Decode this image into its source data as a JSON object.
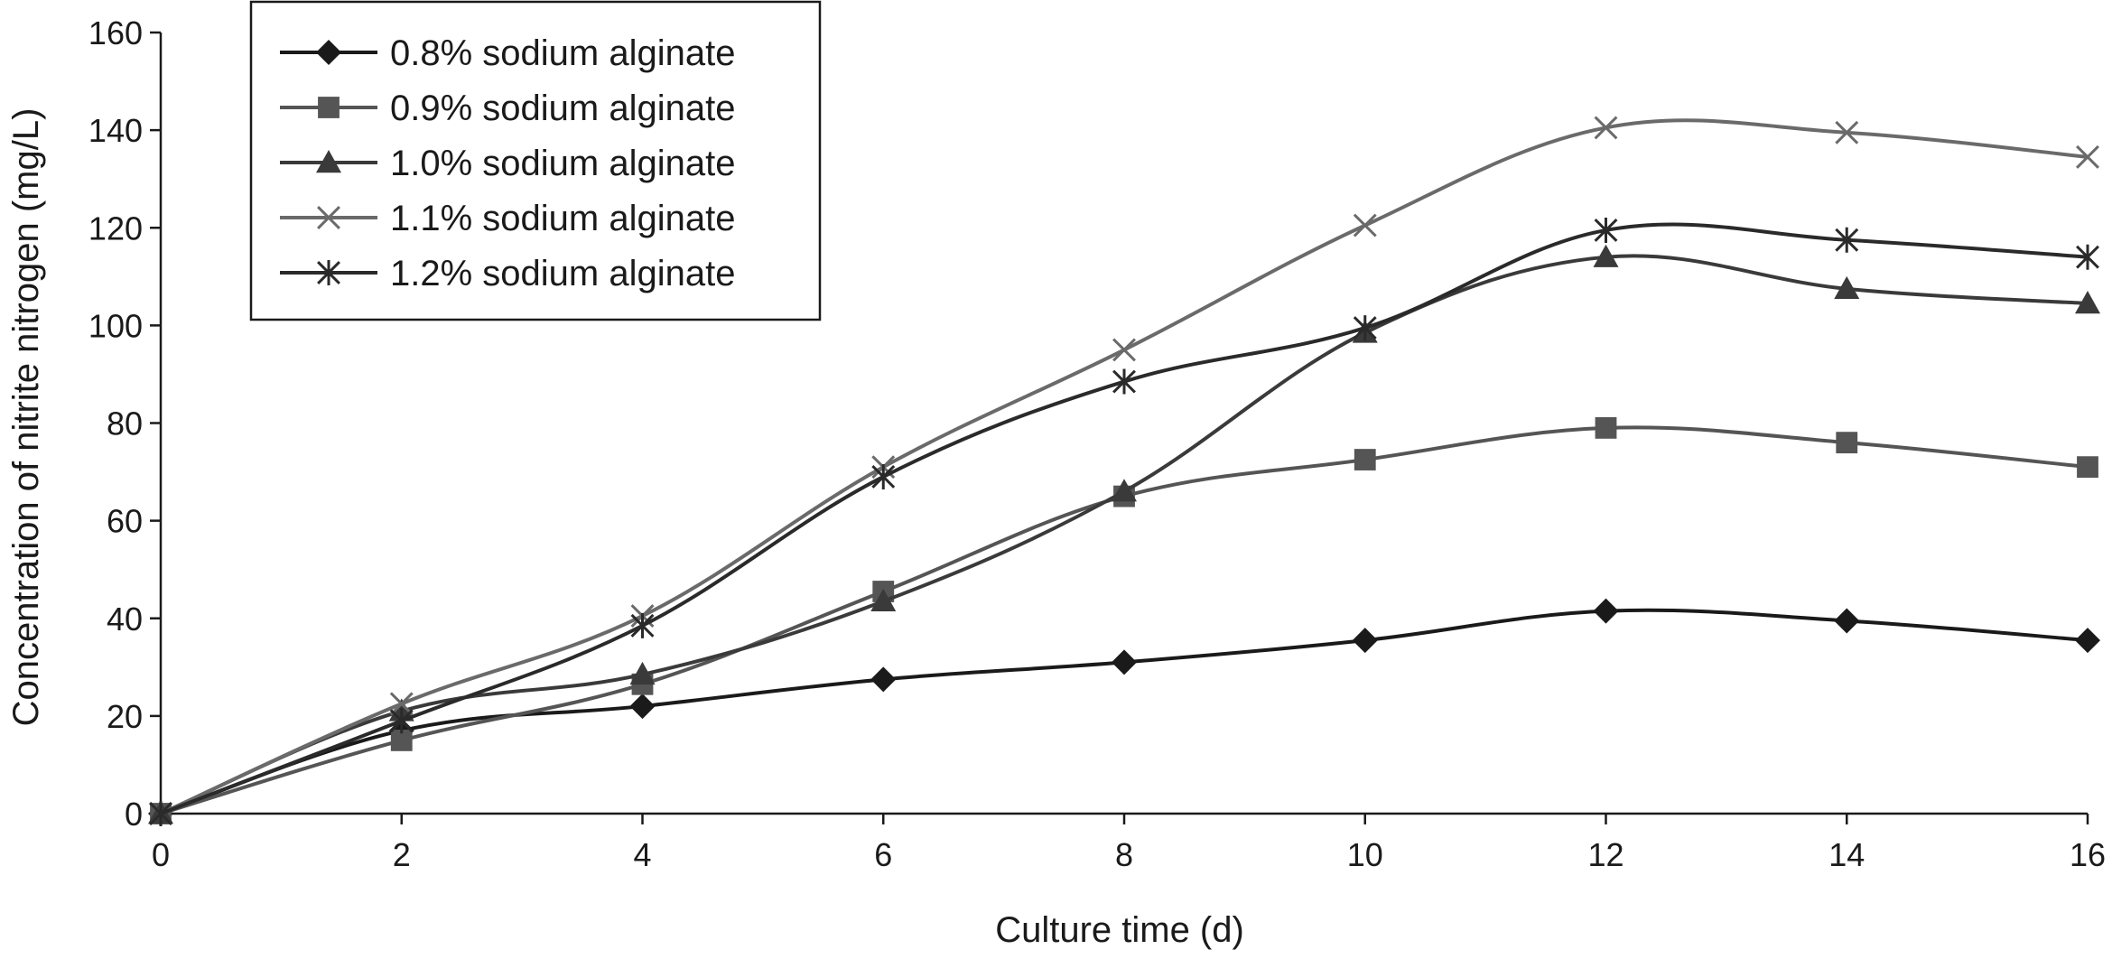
{
  "chart_data": {
    "type": "line",
    "xlabel": "Culture time (d)",
    "ylabel": "Concentration of nitrite nitrogen (mg/L)",
    "xlim": [
      0,
      16
    ],
    "ylim": [
      0,
      160
    ],
    "x_ticks": [
      0,
      2,
      4,
      6,
      8,
      10,
      12,
      14,
      16
    ],
    "y_ticks": [
      0,
      20,
      40,
      60,
      80,
      100,
      120,
      140,
      160
    ],
    "grid": false,
    "legend_position": "top-left",
    "x": [
      0,
      2,
      4,
      6,
      8,
      10,
      12,
      14,
      16
    ],
    "series": [
      {
        "name": "0.8% sodium alginate",
        "marker": "diamond",
        "color": "#1a1a1a",
        "values": [
          0,
          17,
          22,
          27.5,
          31,
          35.5,
          41.5,
          39.5,
          35.5
        ]
      },
      {
        "name": "0.9% sodium alginate",
        "marker": "square",
        "color": "#555555",
        "values": [
          0,
          15,
          26.5,
          45.5,
          65,
          72.5,
          79,
          76,
          71
        ]
      },
      {
        "name": "1.0% sodium alginate",
        "marker": "triangle",
        "color": "#3a3a3a",
        "values": [
          0,
          21,
          28.5,
          43.5,
          66,
          98.5,
          114,
          107.5,
          104.5
        ]
      },
      {
        "name": "1.1% sodium alginate",
        "marker": "x",
        "color": "#6a6a6a",
        "values": [
          0,
          22.5,
          40.5,
          71,
          95,
          120.5,
          140.5,
          139.5,
          134.5
        ]
      },
      {
        "name": "1.2% sodium alginate",
        "marker": "star",
        "color": "#2a2a2a",
        "values": [
          0,
          19,
          38.5,
          69,
          88.5,
          99.5,
          119.5,
          117.5,
          114
        ]
      }
    ]
  }
}
